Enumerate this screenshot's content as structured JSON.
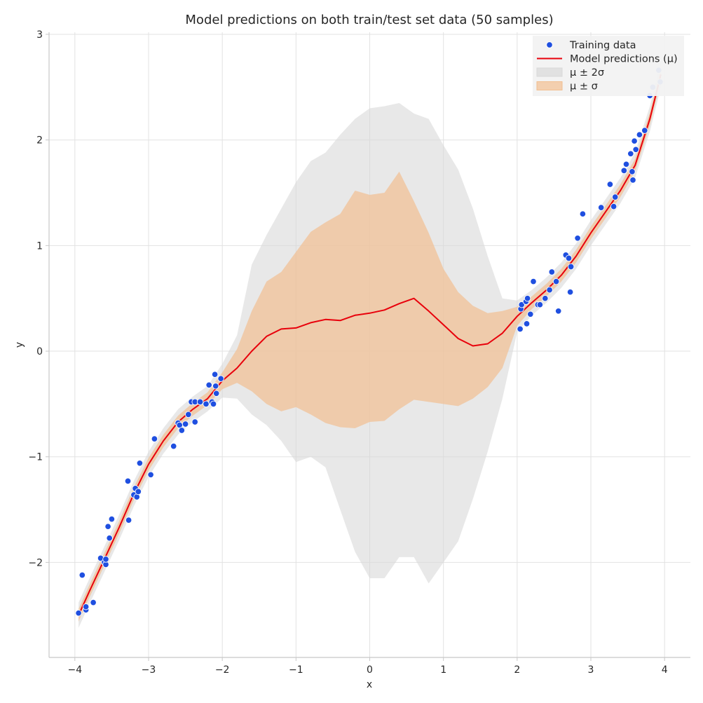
{
  "chart_data": {
    "type": "line",
    "title": "Model predictions on both train/test set data (50 samples)",
    "xlabel": "x",
    "ylabel": "y",
    "xlim": [
      -4.35,
      4.35
    ],
    "ylim": [
      -2.9,
      3.02
    ],
    "xticks": [
      -4,
      -3,
      -2,
      -1,
      0,
      1,
      2,
      3,
      4
    ],
    "xtick_labels": [
      "−4",
      "−3",
      "−2",
      "−1",
      "0",
      "1",
      "2",
      "3",
      "4"
    ],
    "yticks": [
      -2,
      -1,
      0,
      1,
      2,
      3
    ],
    "ytick_labels": [
      "−2",
      "−1",
      "0",
      "1",
      "2",
      "3"
    ],
    "grid": true,
    "legend_position": "top-right",
    "legend": [
      {
        "label": "Training data",
        "kind": "scatter",
        "color": "#1f4fe0"
      },
      {
        "label": "Model predictions (μ)",
        "kind": "line",
        "color": "#e8000b"
      },
      {
        "label": "μ ± 2σ",
        "kind": "band",
        "color": "#d9d9d9"
      },
      {
        "label": "μ ± σ",
        "kind": "band",
        "color": "#f2bf91"
      }
    ],
    "colors": {
      "scatter": "#1f4fe0",
      "mean": "#e8000b",
      "band2": "#d9d9d9",
      "band1": "#f2bf91"
    },
    "series": [
      {
        "name": "Training data",
        "type": "scatter",
        "x": [
          -3.95,
          -3.9,
          -3.85,
          -3.85,
          -3.75,
          -3.65,
          -3.6,
          -3.58,
          -3.58,
          -3.55,
          -3.53,
          -3.5,
          -3.28,
          -3.27,
          -3.2,
          -3.18,
          -3.16,
          -3.14,
          -3.12,
          -2.97,
          -2.92,
          -2.66,
          -2.6,
          -2.58,
          -2.55,
          -2.5,
          -2.46,
          -2.42,
          -2.37,
          -2.37,
          -2.3,
          -2.22,
          -2.18,
          -2.14,
          -2.12,
          -2.1,
          -2.09,
          -2.08,
          -2.02,
          2.04,
          2.05,
          2.06,
          2.12,
          2.13,
          2.14,
          2.18,
          2.22,
          2.28,
          2.31,
          2.38,
          2.44,
          2.47,
          2.53,
          2.56,
          2.66,
          2.7,
          2.72,
          2.73,
          2.82,
          2.89,
          3.14,
          3.26,
          3.31,
          3.33,
          3.45,
          3.48,
          3.54,
          3.56,
          3.57,
          3.59,
          3.61,
          3.66,
          3.73,
          3.8,
          3.84,
          3.92,
          3.94
        ],
        "y": [
          -2.48,
          -2.12,
          -2.45,
          -2.42,
          -2.38,
          -1.96,
          -2.0,
          -2.02,
          -1.97,
          -1.66,
          -1.77,
          -1.59,
          -1.23,
          -1.6,
          -1.36,
          -1.3,
          -1.38,
          -1.33,
          -1.06,
          -1.17,
          -0.83,
          -0.9,
          -0.68,
          -0.7,
          -0.75,
          -0.69,
          -0.6,
          -0.48,
          -0.48,
          -0.67,
          -0.48,
          -0.5,
          -0.32,
          -0.48,
          -0.5,
          -0.22,
          -0.33,
          -0.4,
          -0.26,
          0.21,
          0.4,
          0.44,
          0.47,
          0.26,
          0.5,
          0.35,
          0.66,
          0.44,
          0.44,
          0.5,
          0.58,
          0.75,
          0.66,
          0.38,
          0.91,
          0.88,
          0.56,
          0.8,
          1.07,
          1.3,
          1.36,
          1.58,
          1.37,
          1.46,
          1.71,
          1.77,
          1.87,
          1.7,
          1.62,
          1.99,
          1.91,
          2.05,
          2.09,
          2.42,
          2.5,
          2.66,
          2.55
        ]
      },
      {
        "name": "Model predictions (μ)",
        "type": "line",
        "x": [
          -3.95,
          -3.8,
          -3.6,
          -3.4,
          -3.2,
          -3.0,
          -2.8,
          -2.6,
          -2.4,
          -2.2,
          -2.0,
          -1.8,
          -1.6,
          -1.4,
          -1.2,
          -1.0,
          -0.8,
          -0.6,
          -0.4,
          -0.2,
          0.0,
          0.2,
          0.4,
          0.6,
          0.8,
          1.0,
          1.2,
          1.4,
          1.6,
          1.8,
          2.0,
          2.2,
          2.4,
          2.6,
          2.8,
          3.0,
          3.2,
          3.4,
          3.6,
          3.8,
          3.95
        ],
        "y": [
          -2.5,
          -2.27,
          -1.97,
          -1.67,
          -1.35,
          -1.07,
          -0.85,
          -0.67,
          -0.55,
          -0.45,
          -0.28,
          -0.16,
          0.0,
          0.14,
          0.21,
          0.22,
          0.27,
          0.3,
          0.29,
          0.34,
          0.36,
          0.39,
          0.45,
          0.5,
          0.38,
          0.25,
          0.12,
          0.05,
          0.07,
          0.17,
          0.33,
          0.46,
          0.58,
          0.72,
          0.9,
          1.12,
          1.32,
          1.52,
          1.76,
          2.2,
          2.62
        ]
      },
      {
        "name": "μ ± σ",
        "type": "band",
        "x": [
          -3.95,
          -3.8,
          -3.6,
          -3.4,
          -3.2,
          -3.0,
          -2.8,
          -2.6,
          -2.4,
          -2.2,
          -2.0,
          -1.8,
          -1.6,
          -1.4,
          -1.2,
          -1.0,
          -0.8,
          -0.6,
          -0.4,
          -0.2,
          0.0,
          0.2,
          0.4,
          0.6,
          0.8,
          1.0,
          1.2,
          1.4,
          1.6,
          1.8,
          2.0,
          2.2,
          2.4,
          2.6,
          2.8,
          3.0,
          3.2,
          3.4,
          3.6,
          3.8,
          3.95
        ],
        "lower": [
          -2.56,
          -2.33,
          -2.03,
          -1.73,
          -1.41,
          -1.13,
          -0.91,
          -0.73,
          -0.61,
          -0.51,
          -0.36,
          -0.3,
          -0.38,
          -0.5,
          -0.57,
          -0.53,
          -0.6,
          -0.68,
          -0.72,
          -0.73,
          -0.67,
          -0.66,
          -0.55,
          -0.46,
          -0.48,
          -0.5,
          -0.52,
          -0.45,
          -0.34,
          -0.16,
          0.24,
          0.4,
          0.52,
          0.66,
          0.84,
          1.06,
          1.26,
          1.46,
          1.7,
          2.14,
          2.56
        ],
        "upper": [
          -2.44,
          -2.21,
          -1.91,
          -1.61,
          -1.29,
          -1.01,
          -0.79,
          -0.61,
          -0.49,
          -0.39,
          -0.2,
          0.02,
          0.38,
          0.66,
          0.75,
          0.94,
          1.13,
          1.22,
          1.3,
          1.52,
          1.48,
          1.5,
          1.7,
          1.42,
          1.12,
          0.78,
          0.56,
          0.43,
          0.36,
          0.38,
          0.42,
          0.52,
          0.64,
          0.78,
          0.96,
          1.18,
          1.38,
          1.58,
          1.82,
          2.26,
          2.68
        ]
      },
      {
        "name": "μ ± 2σ",
        "type": "band",
        "x": [
          -3.95,
          -3.8,
          -3.6,
          -3.4,
          -3.2,
          -3.0,
          -2.8,
          -2.6,
          -2.4,
          -2.2,
          -2.0,
          -1.8,
          -1.6,
          -1.4,
          -1.2,
          -1.0,
          -0.8,
          -0.6,
          -0.4,
          -0.2,
          0.0,
          0.2,
          0.4,
          0.6,
          0.8,
          1.0,
          1.2,
          1.4,
          1.6,
          1.8,
          2.0,
          2.2,
          2.4,
          2.6,
          2.8,
          3.0,
          3.2,
          3.4,
          3.6,
          3.8,
          3.95
        ],
        "lower": [
          -2.62,
          -2.39,
          -2.09,
          -1.79,
          -1.47,
          -1.19,
          -0.97,
          -0.79,
          -0.67,
          -0.57,
          -0.44,
          -0.45,
          -0.6,
          -0.7,
          -0.85,
          -1.05,
          -1.0,
          -1.1,
          -1.5,
          -1.9,
          -2.15,
          -2.15,
          -1.95,
          -1.95,
          -2.2,
          -2.0,
          -1.8,
          -1.4,
          -0.95,
          -0.45,
          0.18,
          0.34,
          0.46,
          0.6,
          0.78,
          1.0,
          1.2,
          1.4,
          1.64,
          2.08,
          2.5
        ],
        "upper": [
          -2.38,
          -2.15,
          -1.85,
          -1.55,
          -1.23,
          -0.95,
          -0.73,
          -0.55,
          -0.43,
          -0.33,
          -0.12,
          0.15,
          0.82,
          1.1,
          1.35,
          1.6,
          1.8,
          1.88,
          2.05,
          2.2,
          2.3,
          2.32,
          2.35,
          2.25,
          2.2,
          1.95,
          1.72,
          1.35,
          0.9,
          0.5,
          0.48,
          0.58,
          0.7,
          0.84,
          1.02,
          1.24,
          1.44,
          1.64,
          1.88,
          2.32,
          2.74
        ]
      }
    ]
  }
}
